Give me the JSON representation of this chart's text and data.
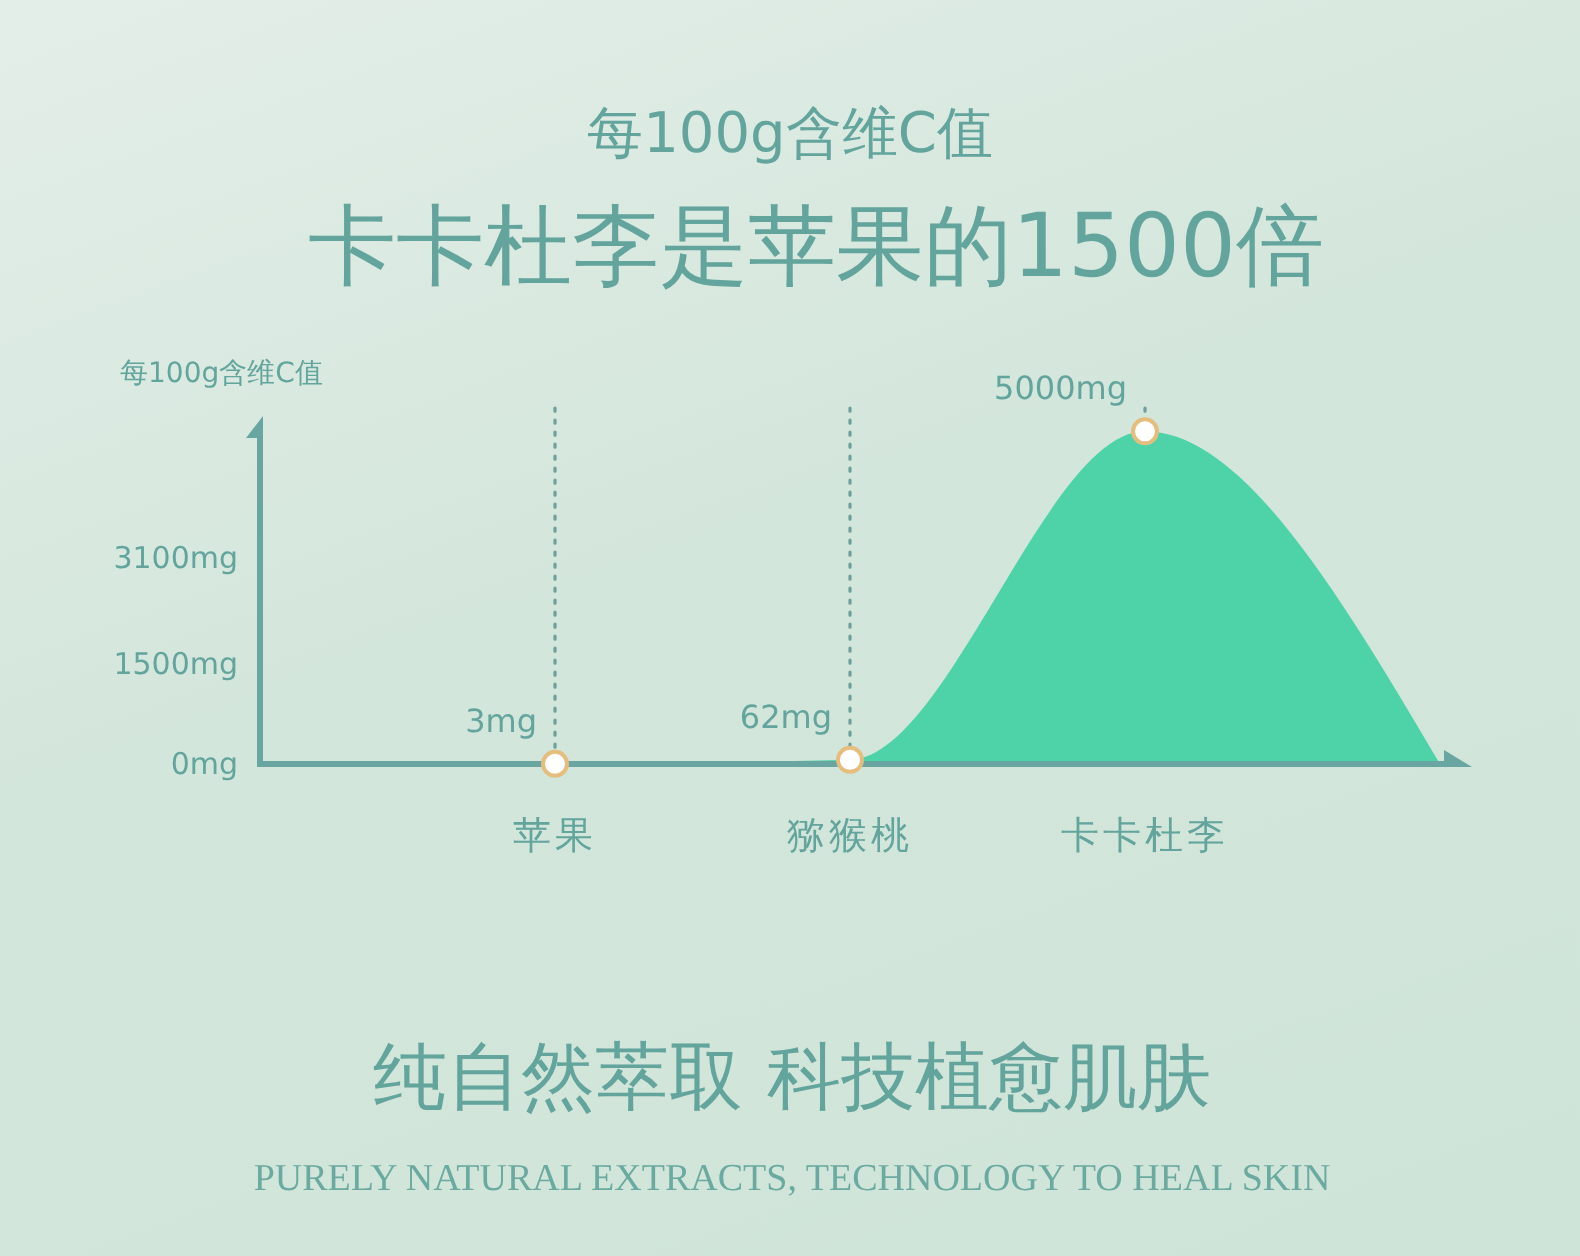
{
  "chart_data": {
    "type": "area",
    "title": "每100g含维C值",
    "subtitle": "卡卡杜李是苹果的1500倍",
    "ylabel": "每100g含维C值",
    "categories": [
      null,
      "苹果",
      "猕猴桃",
      "卡卡杜李",
      null
    ],
    "values": [
      0,
      3,
      62,
      5000,
      0
    ],
    "value_labels": [
      null,
      "3mg",
      "62mg",
      "5000mg",
      null
    ],
    "color": "#4ed3a8",
    "ylim": [
      0,
      5200
    ],
    "yticks": [
      {
        "value": 0,
        "label": "0mg"
      },
      {
        "value": 1500,
        "label": "1500mg"
      },
      {
        "value": 3100,
        "label": "3100mg"
      }
    ],
    "grid": "x",
    "marker": "circle",
    "annotations": [
      "纯自然萃取 科技植愈肌肤",
      "PURELY NATURAL EXTRACTS, TECHNOLOGY TO HEAL SKIN"
    ]
  }
}
